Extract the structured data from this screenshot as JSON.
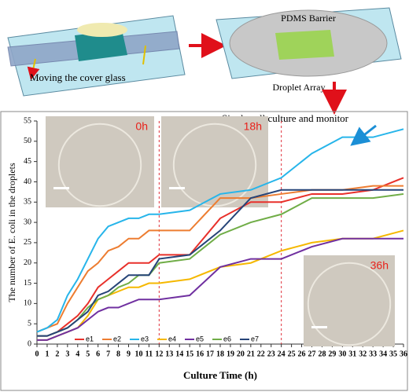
{
  "diagram": {
    "left_caption": "Moving the cover glass",
    "barrier_label": "PDMS Barrier",
    "array_label": "Droplet Array",
    "step_label": "Single cell culture and monitor"
  },
  "chart_data": {
    "type": "line",
    "xlabel": "Culture Time (h)",
    "ylabel": "The number of E. coli in the droplets",
    "x": [
      0,
      1,
      2,
      3,
      4,
      5,
      6,
      7,
      8,
      9,
      10,
      11,
      12,
      15,
      18,
      21,
      24,
      27,
      30,
      33,
      36
    ],
    "xlim": [
      0,
      36
    ],
    "ylim": [
      0,
      55
    ],
    "xticks": [
      0,
      1,
      2,
      3,
      4,
      5,
      6,
      7,
      8,
      9,
      10,
      11,
      12,
      13,
      14,
      15,
      16,
      17,
      18,
      19,
      20,
      21,
      22,
      23,
      24,
      25,
      26,
      27,
      28,
      29,
      30,
      31,
      32,
      33,
      34,
      35,
      36
    ],
    "yticks": [
      0,
      5,
      10,
      15,
      20,
      25,
      30,
      35,
      40,
      45,
      50,
      55
    ],
    "vlines": [
      12,
      24
    ],
    "vline_color": "#e0303a",
    "image_labels": [
      "0h",
      "18h",
      "36h"
    ],
    "series": [
      {
        "name": "e1",
        "color": "#e8312b",
        "values": [
          2,
          2,
          3,
          5,
          7,
          10,
          14,
          16,
          18,
          20,
          20,
          20,
          22,
          22,
          31,
          35,
          35,
          37,
          37,
          38,
          41
        ]
      },
      {
        "name": "e2",
        "color": "#ed7d31",
        "values": [
          3,
          4,
          5,
          10,
          14,
          18,
          20,
          23,
          24,
          26,
          26,
          28,
          28,
          28,
          36,
          36,
          37,
          38,
          38,
          39,
          39
        ]
      },
      {
        "name": "e3",
        "color": "#27b5ea",
        "values": [
          3,
          4,
          6,
          12,
          16,
          21,
          26,
          29,
          30,
          31,
          31,
          32,
          32,
          33,
          37,
          38,
          41,
          47,
          51,
          51,
          53
        ]
      },
      {
        "name": "e4",
        "color": "#f5b800",
        "values": [
          1,
          1,
          2,
          3,
          4,
          7,
          11,
          12,
          13,
          14,
          14,
          15,
          15,
          16,
          19,
          20,
          23,
          25,
          26,
          26,
          28
        ]
      },
      {
        "name": "e5",
        "color": "#7030a0",
        "values": [
          1,
          1,
          2,
          3,
          4,
          6,
          8,
          9,
          9,
          10,
          11,
          11,
          11,
          12,
          19,
          21,
          21,
          24,
          26,
          26,
          26
        ]
      },
      {
        "name": "e6",
        "color": "#70ad47",
        "values": [
          2,
          2,
          3,
          4,
          6,
          9,
          11,
          12,
          14,
          15,
          17,
          17,
          20,
          21,
          27,
          30,
          32,
          36,
          36,
          36,
          37
        ]
      },
      {
        "name": "e7",
        "color": "#264478",
        "values": [
          2,
          2,
          3,
          4,
          6,
          8,
          12,
          13,
          15,
          17,
          17,
          17,
          21,
          22,
          28,
          36,
          38,
          38,
          38,
          38,
          38
        ]
      }
    ]
  }
}
